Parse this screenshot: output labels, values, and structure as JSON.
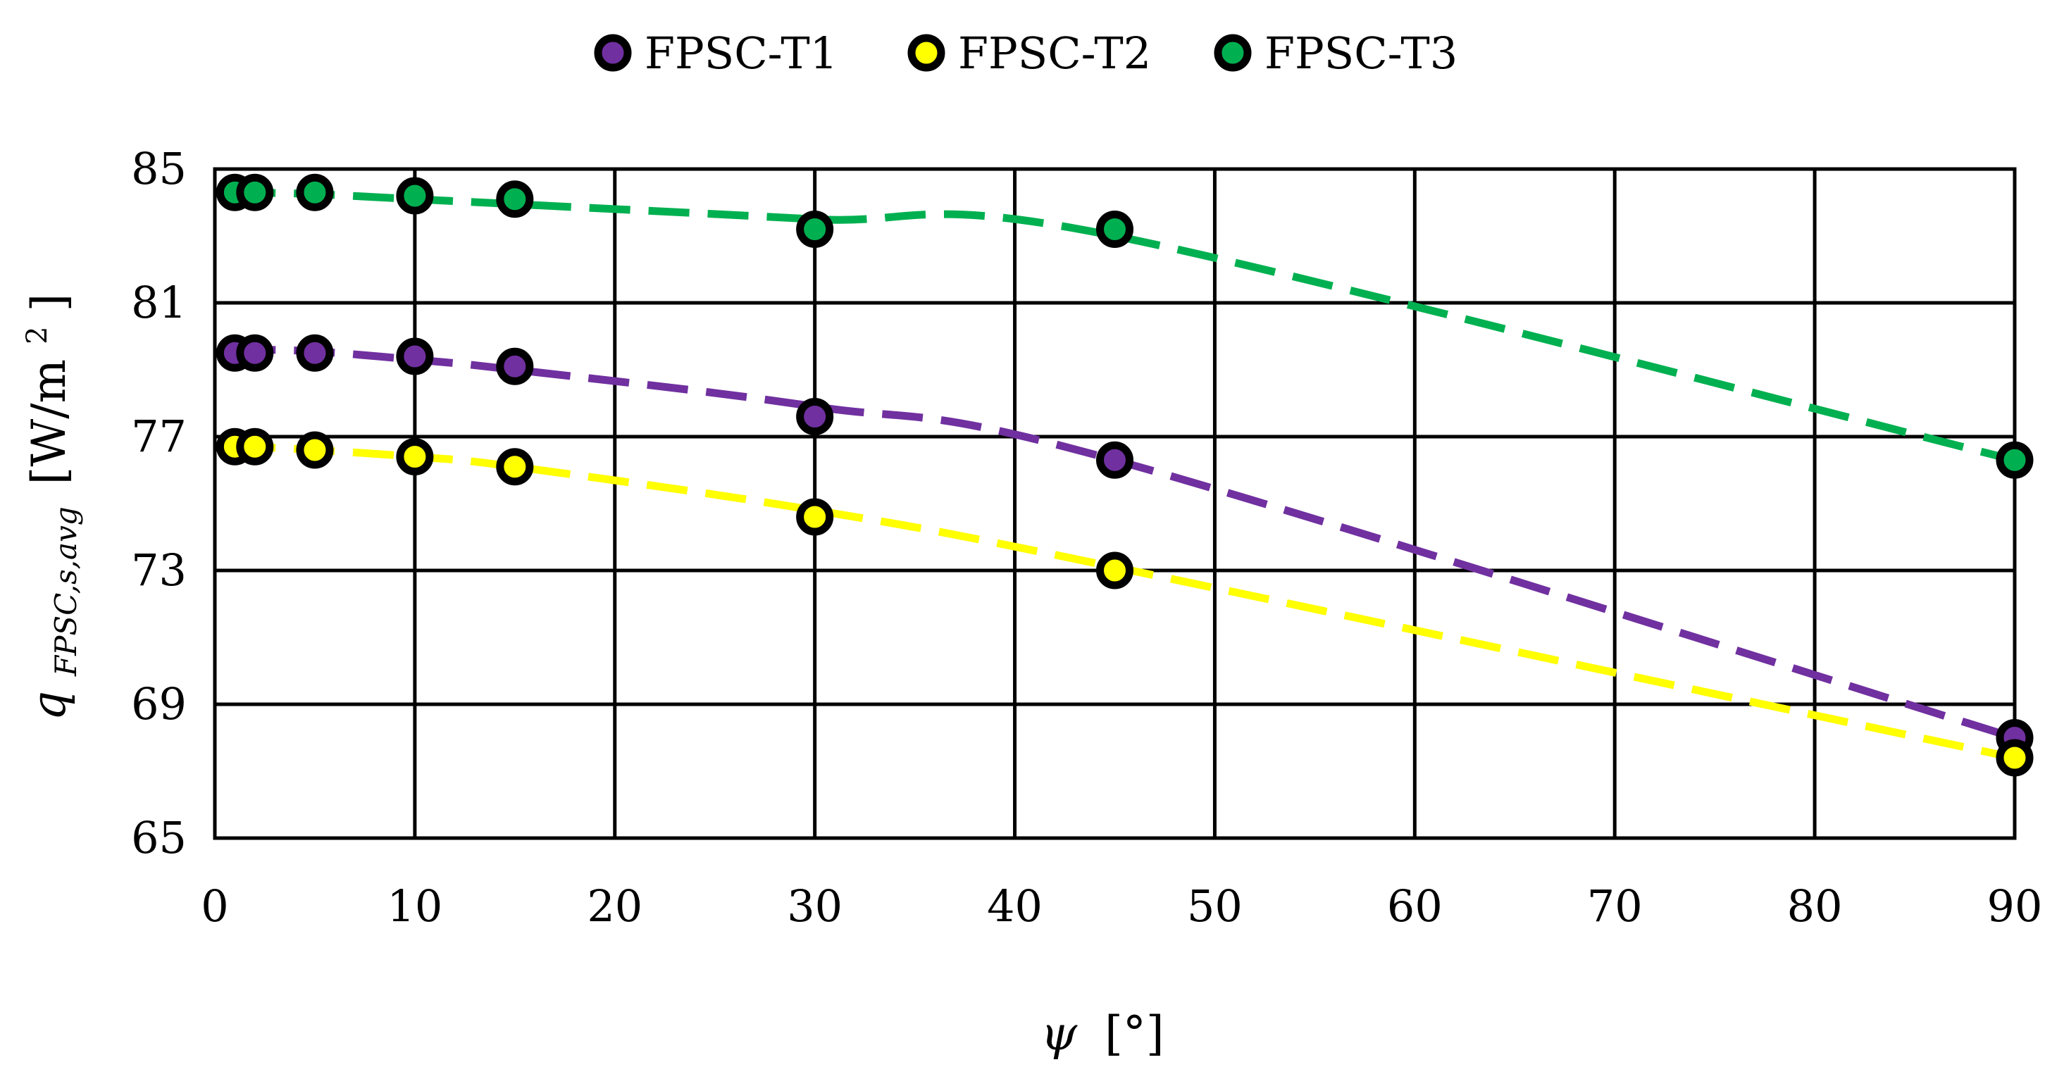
{
  "chart_data": {
    "type": "scatter",
    "title": "",
    "xlabel": {
      "symbol": "ψ",
      "unit": "[°]"
    },
    "ylabel": {
      "symbol": "q",
      "subscript": "FPSC,s,avg",
      "unit": "[W/m",
      "unit_sup": "2",
      "unit_close": "]"
    },
    "xlim": [
      0,
      90
    ],
    "ylim": [
      65,
      85
    ],
    "x_ticks": [
      0,
      10,
      20,
      30,
      40,
      50,
      60,
      70,
      80,
      90
    ],
    "y_ticks": [
      65,
      69,
      73,
      77,
      81,
      85
    ],
    "grid": true,
    "legend_position": "top-center",
    "trendline": "dashed",
    "series": [
      {
        "name": "FPSC-T1",
        "color": "#7030a0",
        "x": [
          1,
          2,
          5,
          10,
          15,
          30,
          45,
          90
        ],
        "y": [
          79.5,
          79.5,
          79.5,
          79.4,
          79.1,
          77.6,
          76.3,
          68.0
        ],
        "trend_y": [
          79.6,
          79.6,
          79.55,
          79.3,
          79.0,
          77.9,
          76.3,
          68.0
        ]
      },
      {
        "name": "FPSC-T2",
        "color": "#ffff00",
        "x": [
          1,
          2,
          5,
          10,
          15,
          30,
          45,
          90
        ],
        "y": [
          76.7,
          76.7,
          76.6,
          76.4,
          76.1,
          74.6,
          73.0,
          67.4
        ],
        "trend_y": [
          76.75,
          76.7,
          76.6,
          76.4,
          76.1,
          74.8,
          73.1,
          67.4
        ]
      },
      {
        "name": "FPSC-T3",
        "color": "#00b050",
        "x": [
          1,
          2,
          5,
          10,
          15,
          30,
          45,
          90
        ],
        "y": [
          84.3,
          84.3,
          84.3,
          84.2,
          84.1,
          83.2,
          83.2,
          76.3
        ],
        "trend_y": [
          84.35,
          84.3,
          84.25,
          84.1,
          83.95,
          83.5,
          83.0,
          76.3
        ]
      }
    ]
  }
}
